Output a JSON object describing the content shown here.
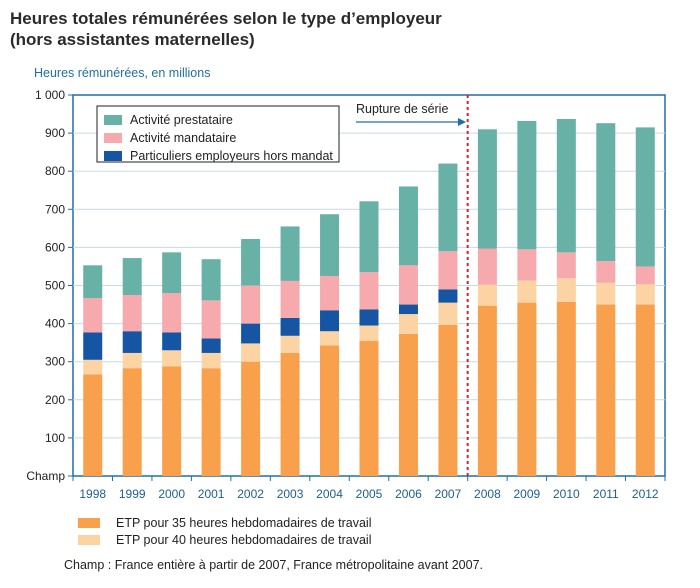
{
  "title_line1": "Heures totales rémunérées selon le type d’employeur",
  "title_line2": "(hors assistantes maternelles)",
  "y_axis_label": "Heures rémunérées, en millions",
  "note": "Champ : France entière à partir de 2007, France métropolitaine avant 2007.",
  "annotation": "Rupture de série",
  "colors": {
    "etp35": "#f9a04c",
    "etp40": "#fcd3a2",
    "particuliers": "#1555a3",
    "mandataire": "#f6aaae",
    "prestataire": "#67b1a7",
    "axis": "#1f6fa5",
    "break_line": "#d8222b"
  },
  "chart_data": {
    "type": "bar",
    "stacked": true,
    "title": "Heures totales rémunérées selon le type d’employeur (hors assistantes maternelles)",
    "ylabel": "Heures rémunérées, en millions",
    "ylim": [
      0,
      1000
    ],
    "yticks": [
      "Champ",
      "100",
      "200",
      "300",
      "400",
      "500",
      "600",
      "700",
      "800",
      "900",
      "1 000"
    ],
    "categories": [
      "1998",
      "1999",
      "2000",
      "2001",
      "2002",
      "2003",
      "2004",
      "2005",
      "2006",
      "2007",
      "2008",
      "2009",
      "2010",
      "2011",
      "2012"
    ],
    "break_after": "2007",
    "legend_top": [
      "Activité prestataire",
      "Activité mandataire",
      "Particuliers employeurs hors mandat"
    ],
    "legend_bottom": [
      "ETP pour 35 heures hebdomadaires de travail",
      "ETP pour 40 heures hebdomadaires de travail"
    ],
    "series": [
      {
        "name": "ETP pour 35 heures hebdomadaires de travail",
        "key": "etp35",
        "values": [
          267,
          283,
          288,
          283,
          300,
          323,
          343,
          355,
          373,
          397,
          447,
          455,
          457,
          450,
          450
        ]
      },
      {
        "name": "ETP pour 40 heures hebdomadaires de travail",
        "key": "etp40",
        "values": [
          38,
          40,
          42,
          40,
          48,
          45,
          37,
          40,
          52,
          58,
          55,
          58,
          62,
          57,
          53
        ]
      },
      {
        "name": "Particuliers employeurs hors mandat",
        "key": "particuliers",
        "values": [
          72,
          57,
          47,
          38,
          52,
          47,
          55,
          42,
          25,
          35,
          0,
          0,
          0,
          0,
          0
        ]
      },
      {
        "name": "Activité mandataire",
        "key": "mandataire",
        "values": [
          90,
          95,
          103,
          100,
          100,
          97,
          90,
          98,
          103,
          100,
          95,
          82,
          68,
          57,
          47
        ]
      },
      {
        "name": "Activité prestataire",
        "key": "prestataire",
        "values": [
          86,
          97,
          107,
          108,
          122,
          143,
          162,
          186,
          207,
          230,
          313,
          337,
          350,
          362,
          365
        ]
      }
    ]
  }
}
